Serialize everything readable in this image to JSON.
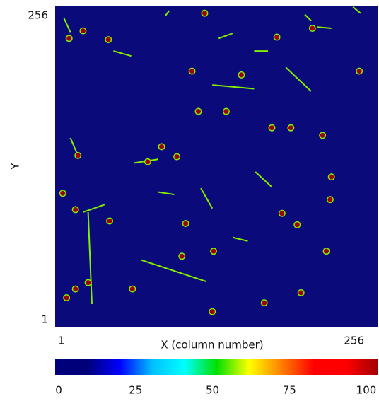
{
  "chart_data": {
    "type": "heatmap",
    "x_label": "X (column number)",
    "y_label": "Y",
    "xlim": [
      1,
      256
    ],
    "ylim": [
      1,
      256
    ],
    "xticks": [
      1,
      256
    ],
    "yticks": [
      1,
      256
    ],
    "zlim": [
      0,
      100
    ],
    "colorbar_ticks": [
      0,
      25,
      50,
      75,
      100
    ],
    "background_color": "#0a0a7a",
    "colormap": [
      "#00007a",
      "#00007a",
      "#0000ff",
      "#00bfff",
      "#00ffff",
      "#00e000",
      "#ffff00",
      "#ff8000",
      "#ff0000",
      "#ff0000",
      "#a00000"
    ],
    "spots": [
      {
        "x": 23,
        "y": 236,
        "value": 100
      },
      {
        "x": 12,
        "y": 230,
        "value": 100
      },
      {
        "x": 43,
        "y": 229,
        "value": 100
      },
      {
        "x": 119,
        "y": 250,
        "value": 100
      },
      {
        "x": 176,
        "y": 231,
        "value": 100
      },
      {
        "x": 204,
        "y": 238,
        "value": 100
      },
      {
        "x": 241,
        "y": 204,
        "value": 100
      },
      {
        "x": 148,
        "y": 201,
        "value": 100
      },
      {
        "x": 109,
        "y": 204,
        "value": 100
      },
      {
        "x": 114,
        "y": 172,
        "value": 100
      },
      {
        "x": 136,
        "y": 172,
        "value": 100
      },
      {
        "x": 172,
        "y": 159,
        "value": 100
      },
      {
        "x": 187,
        "y": 159,
        "value": 100
      },
      {
        "x": 212,
        "y": 153,
        "value": 100
      },
      {
        "x": 19,
        "y": 137,
        "value": 100
      },
      {
        "x": 85,
        "y": 144,
        "value": 100
      },
      {
        "x": 97,
        "y": 136,
        "value": 100
      },
      {
        "x": 74,
        "y": 132,
        "value": 100
      },
      {
        "x": 7,
        "y": 107,
        "value": 100
      },
      {
        "x": 17,
        "y": 94,
        "value": 100
      },
      {
        "x": 44,
        "y": 85,
        "value": 100
      },
      {
        "x": 104,
        "y": 83,
        "value": 100
      },
      {
        "x": 219,
        "y": 120,
        "value": 100
      },
      {
        "x": 218,
        "y": 102,
        "value": 100
      },
      {
        "x": 180,
        "y": 91,
        "value": 100
      },
      {
        "x": 192,
        "y": 82,
        "value": 100
      },
      {
        "x": 126,
        "y": 61,
        "value": 100
      },
      {
        "x": 101,
        "y": 57,
        "value": 100
      },
      {
        "x": 215,
        "y": 61,
        "value": 100
      },
      {
        "x": 27,
        "y": 36,
        "value": 100
      },
      {
        "x": 17,
        "y": 31,
        "value": 100
      },
      {
        "x": 10,
        "y": 24,
        "value": 100
      },
      {
        "x": 62,
        "y": 31,
        "value": 100
      },
      {
        "x": 195,
        "y": 28,
        "value": 100
      },
      {
        "x": 166,
        "y": 20,
        "value": 100
      },
      {
        "x": 125,
        "y": 13,
        "value": 100
      }
    ],
    "tracks": [
      {
        "x": [
          69,
          120
        ],
        "y": [
          54,
          37
        ],
        "value": 55
      },
      {
        "x": [
          23,
          40
        ],
        "y": [
          92,
          98
        ],
        "value": 55
      },
      {
        "x": [
          27,
          30
        ],
        "y": [
          92,
          19
        ],
        "value": 55
      },
      {
        "x": [
          183,
          203
        ],
        "y": [
          207,
          188
        ],
        "value": 55
      },
      {
        "x": [
          125,
          158
        ],
        "y": [
          193,
          190
        ],
        "value": 55
      },
      {
        "x": [
          13,
          19
        ],
        "y": [
          151,
          137
        ],
        "value": 55
      },
      {
        "x": [
          47,
          61
        ],
        "y": [
          220,
          216
        ],
        "value": 55
      },
      {
        "x": [
          130,
          141
        ],
        "y": [
          230,
          234
        ],
        "value": 55
      },
      {
        "x": [
          158,
          169
        ],
        "y": [
          220,
          220
        ],
        "value": 55
      },
      {
        "x": [
          91,
          88
        ],
        "y": [
          252,
          248
        ],
        "value": 55
      },
      {
        "x": [
          208,
          219
        ],
        "y": [
          239,
          238
        ],
        "value": 55
      },
      {
        "x": [
          82,
          95
        ],
        "y": [
          108,
          106
        ],
        "value": 55
      },
      {
        "x": [
          116,
          125
        ],
        "y": [
          111,
          95
        ],
        "value": 55
      },
      {
        "x": [
          63,
          82
        ],
        "y": [
          131,
          134
        ],
        "value": 55
      },
      {
        "x": [
          141,
          153
        ],
        "y": [
          72,
          69
        ],
        "value": 55
      },
      {
        "x": [
          159,
          172
        ],
        "y": [
          124,
          112
        ],
        "value": 55
      },
      {
        "x": [
          203,
          198
        ],
        "y": [
          244,
          249
        ],
        "value": 55
      },
      {
        "x": [
          8,
          13
        ],
        "y": [
          246,
          235
        ],
        "value": 55
      },
      {
        "x": [
          236,
          242
        ],
        "y": [
          255,
          250
        ],
        "value": 55
      }
    ]
  }
}
